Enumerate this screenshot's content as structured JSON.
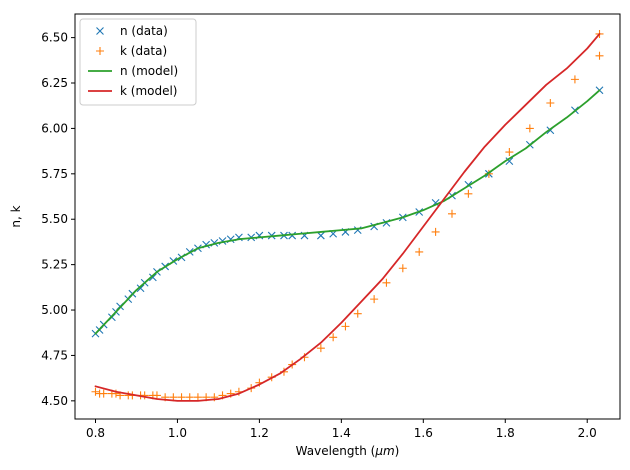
{
  "chart_data": {
    "type": "line",
    "title": "",
    "xlabel": "Wavelength (",
    "xlabel_mu": "μm",
    "xlabel_close": ")",
    "ylabel": "n, k",
    "xlim": [
      0.75,
      2.08
    ],
    "ylim": [
      4.4,
      6.63
    ],
    "x_ticks": [
      0.8,
      1.0,
      1.2,
      1.4,
      1.6,
      1.8,
      2.0
    ],
    "x_tick_labels": [
      "0.8",
      "1.0",
      "1.2",
      "1.4",
      "1.6",
      "1.8",
      "2.0"
    ],
    "y_ticks": [
      4.5,
      4.75,
      5.0,
      5.25,
      5.5,
      5.75,
      6.0,
      6.25,
      6.5
    ],
    "y_tick_labels": [
      "4.50",
      "4.75",
      "5.00",
      "5.25",
      "5.50",
      "5.75",
      "6.00",
      "6.25",
      "6.50"
    ],
    "grid": false,
    "legend_position": "upper-left",
    "series": [
      {
        "name": "n (data)",
        "kind": "scatter",
        "marker": "x",
        "color": "#1f77b4",
        "points": [
          [
            0.8,
            4.87
          ],
          [
            0.81,
            4.89
          ],
          [
            0.82,
            4.92
          ],
          [
            0.84,
            4.96
          ],
          [
            0.85,
            4.99
          ],
          [
            0.86,
            5.02
          ],
          [
            0.88,
            5.06
          ],
          [
            0.89,
            5.09
          ],
          [
            0.91,
            5.12
          ],
          [
            0.92,
            5.15
          ],
          [
            0.94,
            5.18
          ],
          [
            0.95,
            5.21
          ],
          [
            0.97,
            5.24
          ],
          [
            0.99,
            5.27
          ],
          [
            1.01,
            5.29
          ],
          [
            1.03,
            5.32
          ],
          [
            1.05,
            5.34
          ],
          [
            1.07,
            5.36
          ],
          [
            1.09,
            5.37
          ],
          [
            1.11,
            5.38
          ],
          [
            1.13,
            5.39
          ],
          [
            1.15,
            5.4
          ],
          [
            1.18,
            5.4
          ],
          [
            1.2,
            5.41
          ],
          [
            1.23,
            5.41
          ],
          [
            1.26,
            5.41
          ],
          [
            1.28,
            5.41
          ],
          [
            1.31,
            5.41
          ],
          [
            1.35,
            5.41
          ],
          [
            1.38,
            5.42
          ],
          [
            1.41,
            5.43
          ],
          [
            1.44,
            5.44
          ],
          [
            1.48,
            5.46
          ],
          [
            1.51,
            5.48
          ],
          [
            1.55,
            5.51
          ],
          [
            1.59,
            5.54
          ],
          [
            1.63,
            5.59
          ],
          [
            1.67,
            5.63
          ],
          [
            1.71,
            5.69
          ],
          [
            1.76,
            5.75
          ],
          [
            1.81,
            5.82
          ],
          [
            1.86,
            5.91
          ],
          [
            1.91,
            5.99
          ],
          [
            1.97,
            6.1
          ],
          [
            2.03,
            6.21
          ]
        ]
      },
      {
        "name": "k (data)",
        "kind": "scatter",
        "marker": "+",
        "color": "#ff7f0e",
        "points": [
          [
            0.8,
            4.55
          ],
          [
            0.81,
            4.54
          ],
          [
            0.82,
            4.54
          ],
          [
            0.84,
            4.54
          ],
          [
            0.85,
            4.54
          ],
          [
            0.86,
            4.53
          ],
          [
            0.88,
            4.53
          ],
          [
            0.89,
            4.53
          ],
          [
            0.91,
            4.53
          ],
          [
            0.92,
            4.53
          ],
          [
            0.94,
            4.53
          ],
          [
            0.95,
            4.53
          ],
          [
            0.97,
            4.52
          ],
          [
            0.99,
            4.52
          ],
          [
            1.01,
            4.52
          ],
          [
            1.03,
            4.52
          ],
          [
            1.05,
            4.52
          ],
          [
            1.07,
            4.52
          ],
          [
            1.09,
            4.52
          ],
          [
            1.11,
            4.53
          ],
          [
            1.13,
            4.54
          ],
          [
            1.15,
            4.55
          ],
          [
            1.18,
            4.57
          ],
          [
            1.2,
            4.6
          ],
          [
            1.23,
            4.63
          ],
          [
            1.26,
            4.66
          ],
          [
            1.28,
            4.7
          ],
          [
            1.31,
            4.74
          ],
          [
            1.35,
            4.79
          ],
          [
            1.38,
            4.85
          ],
          [
            1.41,
            4.91
          ],
          [
            1.44,
            4.98
          ],
          [
            1.48,
            5.06
          ],
          [
            1.51,
            5.15
          ],
          [
            1.55,
            5.23
          ],
          [
            1.59,
            5.32
          ],
          [
            1.63,
            5.43
          ],
          [
            1.67,
            5.53
          ],
          [
            1.71,
            5.64
          ],
          [
            1.76,
            5.75
          ],
          [
            1.81,
            5.87
          ],
          [
            1.86,
            6.0
          ],
          [
            1.91,
            6.14
          ],
          [
            1.97,
            6.27
          ],
          [
            2.03,
            6.4
          ],
          [
            2.03,
            6.52
          ]
        ]
      },
      {
        "name": "n (model)",
        "kind": "line",
        "color": "#2ca02c",
        "points": [
          [
            0.8,
            4.87
          ],
          [
            0.85,
            4.99
          ],
          [
            0.9,
            5.11
          ],
          [
            0.95,
            5.21
          ],
          [
            1.0,
            5.28
          ],
          [
            1.05,
            5.34
          ],
          [
            1.1,
            5.37
          ],
          [
            1.15,
            5.39
          ],
          [
            1.2,
            5.4
          ],
          [
            1.25,
            5.41
          ],
          [
            1.3,
            5.42
          ],
          [
            1.35,
            5.43
          ],
          [
            1.4,
            5.44
          ],
          [
            1.45,
            5.45
          ],
          [
            1.5,
            5.48
          ],
          [
            1.55,
            5.51
          ],
          [
            1.6,
            5.55
          ],
          [
            1.65,
            5.6
          ],
          [
            1.7,
            5.67
          ],
          [
            1.75,
            5.74
          ],
          [
            1.8,
            5.82
          ],
          [
            1.85,
            5.89
          ],
          [
            1.9,
            5.98
          ],
          [
            1.95,
            6.06
          ],
          [
            2.0,
            6.15
          ],
          [
            2.03,
            6.21
          ]
        ]
      },
      {
        "name": "k (model)",
        "kind": "line",
        "color": "#d62728",
        "points": [
          [
            0.8,
            4.58
          ],
          [
            0.85,
            4.55
          ],
          [
            0.9,
            4.53
          ],
          [
            0.95,
            4.51
          ],
          [
            1.0,
            4.5
          ],
          [
            1.05,
            4.5
          ],
          [
            1.1,
            4.51
          ],
          [
            1.15,
            4.54
          ],
          [
            1.2,
            4.59
          ],
          [
            1.25,
            4.65
          ],
          [
            1.3,
            4.73
          ],
          [
            1.35,
            4.82
          ],
          [
            1.4,
            4.93
          ],
          [
            1.45,
            5.05
          ],
          [
            1.5,
            5.17
          ],
          [
            1.55,
            5.31
          ],
          [
            1.6,
            5.46
          ],
          [
            1.65,
            5.61
          ],
          [
            1.7,
            5.76
          ],
          [
            1.75,
            5.9
          ],
          [
            1.8,
            6.02
          ],
          [
            1.85,
            6.13
          ],
          [
            1.9,
            6.24
          ],
          [
            1.95,
            6.33
          ],
          [
            2.0,
            6.44
          ],
          [
            2.03,
            6.52
          ]
        ]
      }
    ]
  }
}
